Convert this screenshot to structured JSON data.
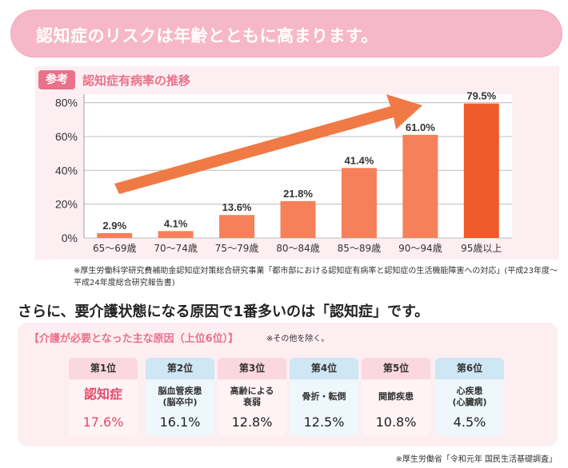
{
  "banner": {
    "title": "認知症のリスクは年齢とともに高まります。"
  },
  "chart_section": {
    "badge": "参考",
    "title": "認知症有病率の推移"
  },
  "chart_data": {
    "type": "bar",
    "title": "認知症有病率の推移",
    "categories": [
      "65〜69歳",
      "70〜74歳",
      "75〜79歳",
      "80〜84歳",
      "85〜89歳",
      "90〜94歳",
      "95歳以上"
    ],
    "values": [
      2.9,
      4.1,
      13.6,
      21.8,
      41.4,
      61.0,
      79.5
    ],
    "value_labels": [
      "2.9%",
      "4.1%",
      "13.6%",
      "21.8%",
      "41.4%",
      "61.0%",
      "79.5%"
    ],
    "y_ticks": [
      "0%",
      "20%",
      "40%",
      "60%",
      "80%"
    ],
    "ylim": [
      0,
      85
    ],
    "grid": true,
    "colors": {
      "bar": "#f5805a",
      "bar_last": "#ee5a2a",
      "arrow": "#f07a45"
    }
  },
  "chart_footnote": "※厚生労働科学研究費補助金認知症対策総合研究事業「都市部における認知症有病率と認知症の生活機能障害への対応」(平成23年度〜平成24年度総合研究報告書)",
  "headline2": "さらに、要介護状態になる原因で1番多いのは「認知症」です。",
  "causes": {
    "title": "【介護が必要となった主な原因（上位6位）】",
    "note": "※その他を除く。",
    "items": [
      {
        "rank": "第1位",
        "name": "認知症",
        "pct": "17.6%",
        "theme": "pink"
      },
      {
        "rank": "第2位",
        "name": "脳血管疾患\n(脳卒中)",
        "pct": "16.1%",
        "theme": "blue"
      },
      {
        "rank": "第3位",
        "name": "高齢による\n衰弱",
        "pct": "12.8%",
        "theme": "pink"
      },
      {
        "rank": "第4位",
        "name": "骨折・転倒",
        "pct": "12.5%",
        "theme": "blue"
      },
      {
        "rank": "第5位",
        "name": "関節疾患",
        "pct": "10.8%",
        "theme": "pink"
      },
      {
        "rank": "第6位",
        "name": "心疾患\n(心臓病)",
        "pct": "4.5%",
        "theme": "blue"
      }
    ]
  },
  "causes_footnote": "※厚生労働省「令和元年 国民生活基礎調査」"
}
